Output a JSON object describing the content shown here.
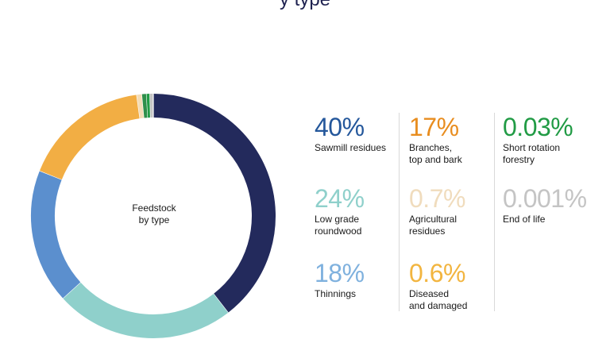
{
  "chart_data": {
    "type": "pie",
    "title_fragment": "y type",
    "center_label": "Feedstock\nby type",
    "slices": [
      {
        "label": "Sawmill residues",
        "value": 40,
        "value_label": "40%",
        "color": "#232a5c"
      },
      {
        "label": "Low grade\nroundwood",
        "value": 24,
        "value_label": "24%",
        "color": "#8fd0cb"
      },
      {
        "label": "Thinnings",
        "value": 18,
        "value_label": "18%",
        "color": "#5b8fce"
      },
      {
        "label": "Branches,\ntop and bark",
        "value": 17,
        "value_label": "17%",
        "color": "#f2ae44"
      },
      {
        "label": "Agricultural\nresidues",
        "value": 0.7,
        "value_label": "0.7%",
        "color": "#f3dcb6"
      },
      {
        "label": "Diseased\nand damaged",
        "value": 0.6,
        "value_label": "0.6%",
        "color": "#2f8f4b"
      },
      {
        "label": "Short rotation\nforestry",
        "value": 0.03,
        "value_label": "0.03%",
        "color": "#219b45"
      },
      {
        "label": "End of life",
        "value": 0.001,
        "value_label": "0.001%",
        "color": "#c4c4c4"
      }
    ],
    "legend_colors": {
      "Sawmill residues": "#24579b",
      "Low grade\nroundwood": "#8fd0cb",
      "Thinnings": "#7fb1de",
      "Branches,\ntop and bark": "#e88d1f",
      "Agricultural\nresidues": "#f0dcbd",
      "Diseased\nand damaged": "#f2b540",
      "Short rotation\nforestry": "#219b45",
      "End of life": "#c4c4c4"
    }
  }
}
